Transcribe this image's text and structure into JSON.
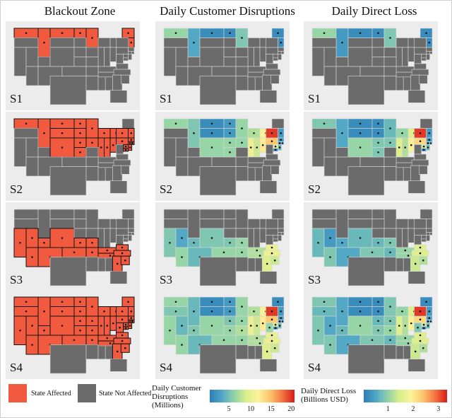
{
  "columns": {
    "blackout": "Blackout Zone",
    "customers": "Daily Customer Disruptions",
    "loss": "Daily Direct Loss"
  },
  "scenarios": [
    "S1",
    "S2",
    "S3",
    "S4"
  ],
  "colors": {
    "affected": "#f15a3f",
    "not_affected": "#6b6b6b",
    "background": "#ececec",
    "state_border": "#d8d8d8",
    "colormap": [
      "#2c7fb8",
      "#4fa6c6",
      "#8fd2a8",
      "#d8ee8a",
      "#fff29a",
      "#fdc36b",
      "#f4733f",
      "#d7191c"
    ]
  },
  "legend": {
    "affected": "State Affected",
    "not_affected": "State Not Affected",
    "customers_title": "Daily Customer Disruptions (Millions)",
    "customers_ticks": [
      "5",
      "10",
      "15",
      "20"
    ],
    "loss_title": "Daily Direct Loss (Billions USD)",
    "loss_ticks": [
      "1",
      "2",
      "3"
    ]
  },
  "scenario_states": {
    "S1": [
      "WA",
      "ID",
      "MT",
      "ND",
      "MN",
      "ME",
      "NH",
      "VT"
    ],
    "S2": [
      "WA",
      "ID",
      "MT",
      "ND",
      "MN",
      "WY",
      "SD",
      "NE",
      "CO",
      "KS",
      "IA",
      "WI",
      "MI",
      "IL",
      "IN",
      "OH",
      "PA",
      "NY",
      "VT",
      "NH",
      "MA",
      "CT",
      "RI",
      "NJ",
      "DE",
      "MD"
    ],
    "S3": [
      "CA",
      "NV",
      "AZ",
      "NM",
      "OK",
      "AR",
      "TN",
      "NC",
      "SC",
      "GA",
      "VA",
      "KY",
      "MO",
      "KS",
      "UT",
      "CO"
    ],
    "S4": [
      "WA",
      "OR",
      "CA",
      "NV",
      "ID",
      "MT",
      "WY",
      "UT",
      "AZ",
      "CO",
      "NM",
      "ND",
      "SD",
      "NE",
      "KS",
      "OK",
      "MN",
      "IA",
      "MO",
      "AR",
      "WI",
      "IL",
      "MI",
      "IN",
      "OH",
      "KY",
      "TN",
      "PA",
      "NY",
      "VT",
      "NH",
      "ME",
      "MA",
      "CT",
      "RI",
      "NJ",
      "DE",
      "MD",
      "VA",
      "WV",
      "NC",
      "SC",
      "GA"
    ]
  },
  "customer_levels": {
    "S1": {
      "WA": 0.3,
      "ID": 0.15,
      "MT": 0.05,
      "ND": 0.05,
      "MN": 0.25,
      "ME": 0.05,
      "NH": 0.05,
      "VT": 0.05
    },
    "S2": {
      "WA": 0.3,
      "ID": 0.25,
      "MT": 0.05,
      "ND": 0.1,
      "MN": 0.3,
      "WY": 0.05,
      "SD": 0.1,
      "NE": 0.3,
      "CO": 0.3,
      "KS": 0.3,
      "IA": 0.3,
      "WI": 0.35,
      "MI": 0.55,
      "IL": 0.5,
      "IN": 0.4,
      "OH": 0.6,
      "PA": 0.7,
      "NY": 0.95,
      "VT": 0.05,
      "NH": 0.1,
      "MA": 0.1,
      "CT": 0.1,
      "RI": 0.1,
      "NJ": 0.2,
      "DE": 0.05,
      "MD": 0.45
    },
    "S3": {
      "CA": 0.25,
      "NV": 0.15,
      "AZ": 0.3,
      "NM": 0.2,
      "OK": 0.3,
      "AR": 0.3,
      "TN": 0.35,
      "NC": 0.5,
      "SC": 0.4,
      "GA": 0.45,
      "VA": 0.5,
      "KY": 0.35,
      "MO": 0.3,
      "KS": 0.25,
      "UT": 0.2,
      "CO": 0.25
    },
    "S4": {
      "WA": 0.3,
      "OR": 0.25,
      "CA": 0.3,
      "NV": 0.2,
      "ID": 0.2,
      "MT": 0.05,
      "WY": 0.05,
      "UT": 0.25,
      "AZ": 0.3,
      "CO": 0.3,
      "NM": 0.2,
      "ND": 0.1,
      "SD": 0.1,
      "NE": 0.25,
      "KS": 0.3,
      "OK": 0.3,
      "MN": 0.3,
      "IA": 0.3,
      "MO": 0.35,
      "AR": 0.3,
      "WI": 0.35,
      "IL": 0.5,
      "MI": 0.55,
      "IN": 0.4,
      "OH": 0.6,
      "KY": 0.35,
      "TN": 0.35,
      "PA": 0.7,
      "NY": 0.95,
      "VT": 0.05,
      "NH": 0.1,
      "ME": 0.05,
      "MA": 0.1,
      "CT": 0.1,
      "RI": 0.1,
      "NJ": 0.2,
      "DE": 0.05,
      "MD": 0.45,
      "VA": 0.5,
      "WV": 0.3,
      "NC": 0.5,
      "SC": 0.4,
      "GA": 0.45
    }
  },
  "loss_levels": {
    "S1": {
      "WA": 0.3,
      "ID": 0.1,
      "MT": 0.05,
      "ND": 0.05,
      "MN": 0.25,
      "ME": 0.05,
      "NH": 0.05,
      "VT": 0.05
    },
    "S2": {
      "WA": 0.25,
      "ID": 0.15,
      "MT": 0.05,
      "ND": 0.05,
      "MN": 0.2,
      "WY": 0.05,
      "SD": 0.05,
      "NE": 0.25,
      "CO": 0.3,
      "KS": 0.25,
      "IA": 0.25,
      "WI": 0.3,
      "MI": 0.45,
      "IL": 0.45,
      "IN": 0.35,
      "OH": 0.55,
      "PA": 0.65,
      "NY": 0.95,
      "VT": 0.05,
      "NH": 0.1,
      "MA": 0.1,
      "CT": 0.1,
      "RI": 0.1,
      "NJ": 0.2,
      "DE": 0.05,
      "MD": 0.4
    },
    "S3": {
      "CA": 0.2,
      "NV": 0.1,
      "AZ": 0.25,
      "NM": 0.15,
      "OK": 0.25,
      "AR": 0.2,
      "TN": 0.3,
      "NC": 0.45,
      "SC": 0.35,
      "GA": 0.4,
      "VA": 0.45,
      "KY": 0.3,
      "MO": 0.25,
      "KS": 0.2,
      "UT": 0.15,
      "CO": 0.2
    },
    "S4": {
      "WA": 0.25,
      "OR": 0.2,
      "CA": 0.25,
      "NV": 0.15,
      "ID": 0.15,
      "MT": 0.05,
      "WY": 0.05,
      "UT": 0.2,
      "AZ": 0.25,
      "CO": 0.3,
      "NM": 0.15,
      "ND": 0.05,
      "SD": 0.05,
      "NE": 0.2,
      "KS": 0.25,
      "OK": 0.25,
      "MN": 0.25,
      "IA": 0.25,
      "MO": 0.3,
      "AR": 0.2,
      "WI": 0.3,
      "IL": 0.45,
      "MI": 0.45,
      "IN": 0.35,
      "OH": 0.55,
      "KY": 0.3,
      "TN": 0.3,
      "PA": 0.65,
      "NY": 0.95,
      "VT": 0.05,
      "NH": 0.1,
      "ME": 0.05,
      "MA": 0.1,
      "CT": 0.1,
      "RI": 0.1,
      "NJ": 0.2,
      "DE": 0.05,
      "MD": 0.4,
      "VA": 0.45,
      "WV": 0.25,
      "NC": 0.45,
      "SC": 0.35,
      "GA": 0.4
    }
  }
}
